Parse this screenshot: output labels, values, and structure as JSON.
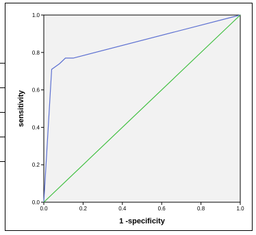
{
  "chart_data": {
    "type": "line",
    "title": "",
    "xlabel": "1 -specificity",
    "ylabel": "sensitivity",
    "xlim": [
      0,
      1
    ],
    "ylim": [
      0,
      1
    ],
    "x_ticks": [
      "0.0",
      "0.2",
      "0.4",
      "0.6",
      "0.8",
      "1.0"
    ],
    "y_ticks": [
      "0.0",
      "0.2",
      "0.4",
      "0.6",
      "0.8",
      "1.0"
    ],
    "grid": false,
    "legend": "none",
    "plot_background": "#f2f2f2",
    "series": [
      {
        "color": "#5b6fd1",
        "x": [
          0.0,
          0.04,
          0.08,
          0.11,
          0.15,
          1.0
        ],
        "y": [
          0.0,
          0.71,
          0.74,
          0.77,
          0.77,
          1.0
        ]
      },
      {
        "color": "#3fbf3f",
        "x": [
          0.0,
          1.0
        ],
        "y": [
          0.0,
          1.0
        ]
      }
    ]
  }
}
